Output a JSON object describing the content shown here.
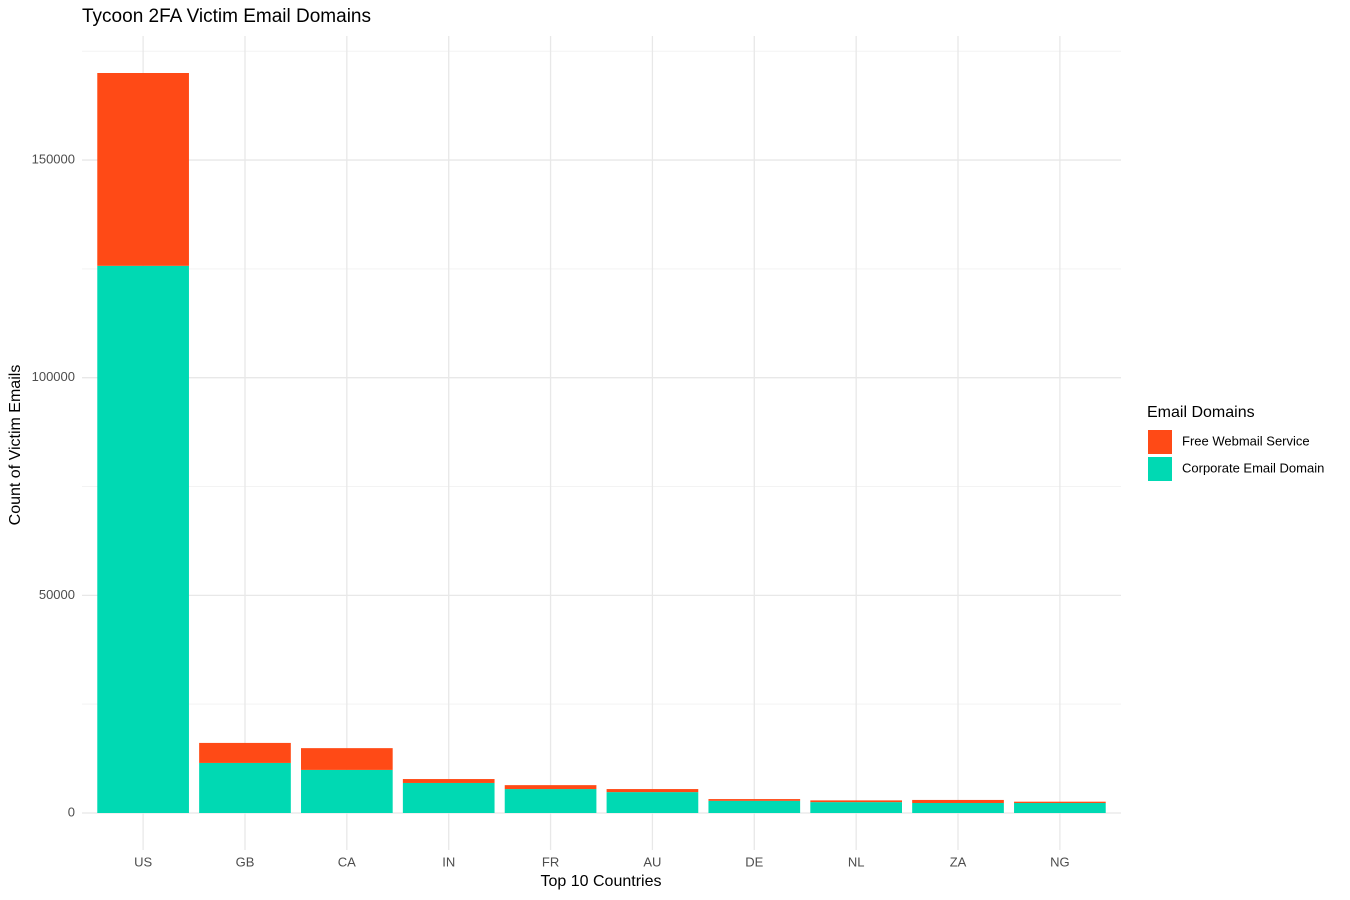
{
  "chart_data": {
    "type": "stacked_bar",
    "title": "Tycoon 2FA Victim Email Domains",
    "x_label": "Top 10 Countries",
    "y_label": "Count of Victim Emails",
    "legend_title": "Email Domains",
    "legend_position": "right",
    "categories": [
      "US",
      "GB",
      "CA",
      "IN",
      "FR",
      "AU",
      "DE",
      "NL",
      "ZA",
      "NG"
    ],
    "series": [
      {
        "name": "Free Webmail Service",
        "color": "#FF4A16",
        "values": [
          44300,
          4600,
          5000,
          900,
          900,
          700,
          400,
          400,
          700,
          300
        ]
      },
      {
        "name": "Corporate Email Domain",
        "color": "#00D9B3",
        "values": [
          125700,
          11500,
          9900,
          6900,
          5500,
          4800,
          2800,
          2500,
          2300,
          2300
        ]
      }
    ],
    "ylim": [
      -8500,
      178500
    ],
    "yticks": [
      0,
      50000,
      100000,
      150000
    ],
    "yminorticks": [
      25000,
      75000,
      125000,
      175000
    ],
    "grid": true
  }
}
